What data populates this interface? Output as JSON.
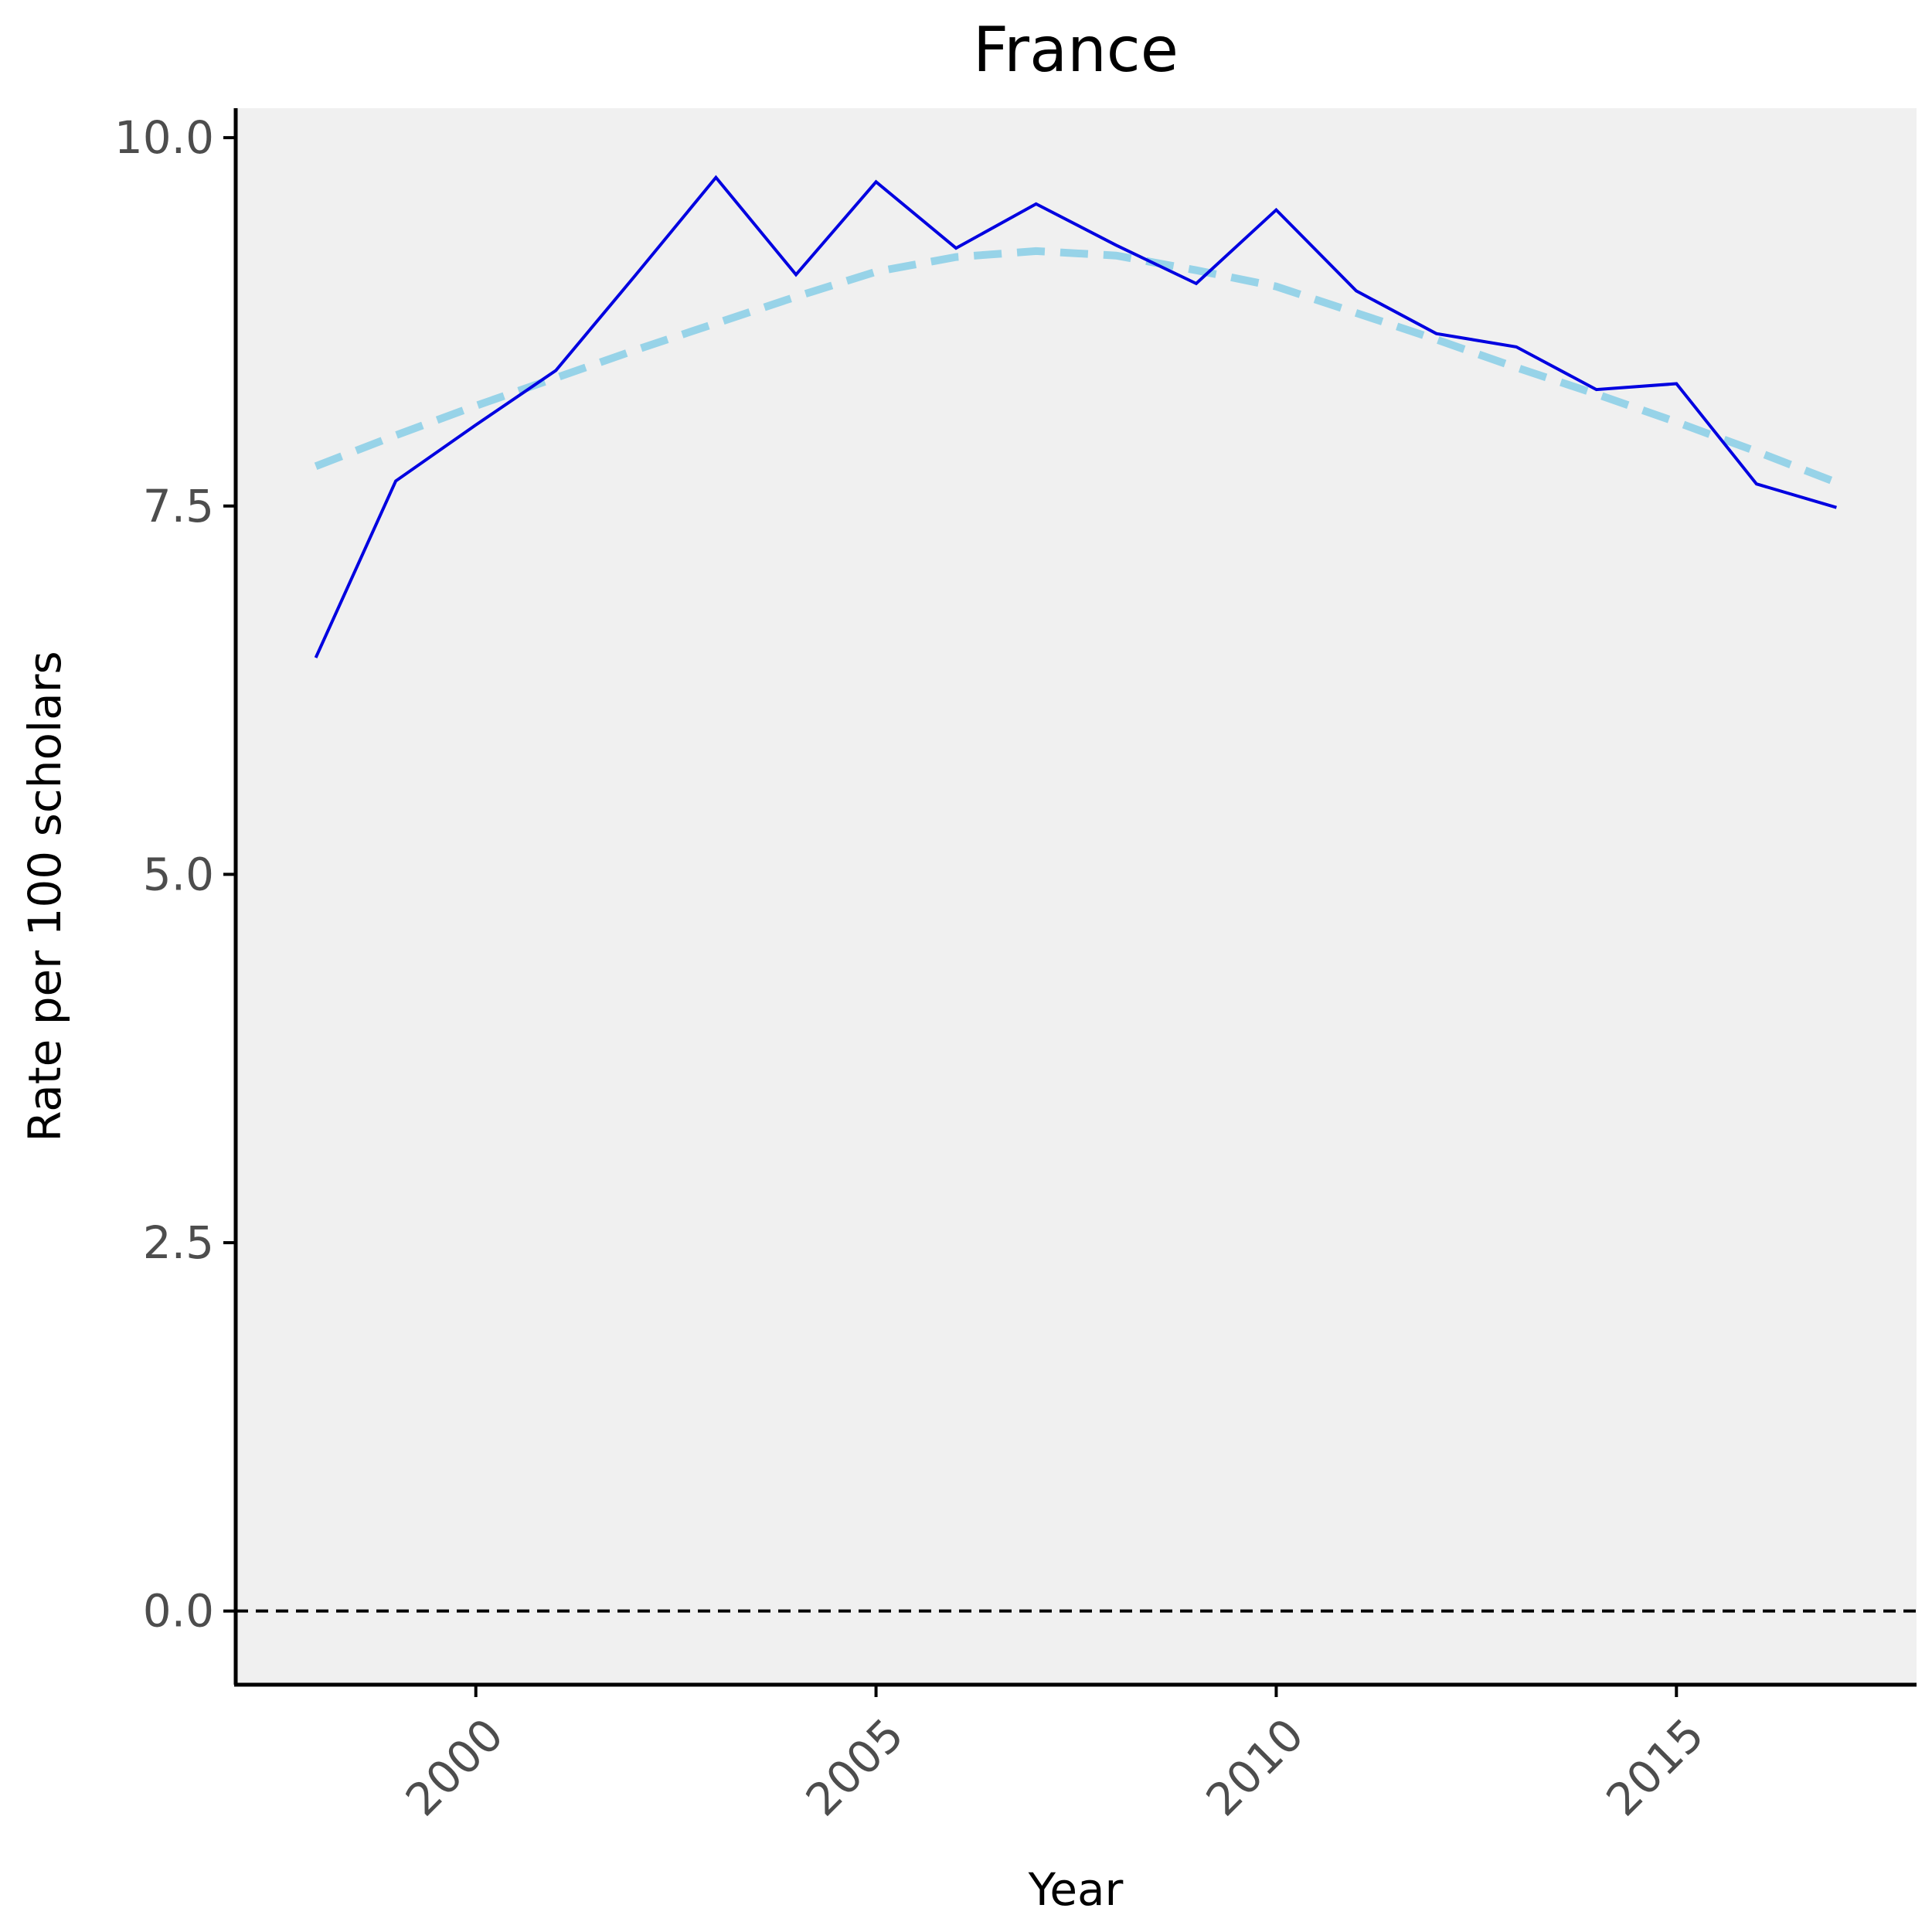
{
  "chart_data": {
    "type": "line",
    "title": "France",
    "xlabel": "Year",
    "ylabel": "Rate per 100 scholars",
    "xlim": [
      1997,
      2018
    ],
    "ylim": [
      -0.5,
      10.2
    ],
    "x_ticks": [
      2000,
      2005,
      2010,
      2015
    ],
    "y_ticks": [
      0.0,
      2.5,
      5.0,
      7.5,
      10.0
    ],
    "y_tick_labels": [
      "0.0",
      "2.5",
      "5.0",
      "7.5",
      "10.0"
    ],
    "x_tick_labels": [
      "2000",
      "2005",
      "2010",
      "2015"
    ],
    "grid": false,
    "reference_line": {
      "y": 0.0,
      "style": "dashed",
      "color": "#000000"
    },
    "series": [
      {
        "role": "observed",
        "color": "#0000e0",
        "style": "solid",
        "x": [
          1998,
          1999,
          2000,
          2001,
          2002,
          2003,
          2004,
          2005,
          2006,
          2007,
          2008,
          2009,
          2010,
          2011,
          2012,
          2013,
          2014,
          2015,
          2016,
          2017
        ],
        "values": [
          6.47,
          7.67,
          8.05,
          8.42,
          9.07,
          9.73,
          9.07,
          9.7,
          9.25,
          9.55,
          9.27,
          9.01,
          9.51,
          8.96,
          8.67,
          8.58,
          8.29,
          8.33,
          7.65,
          7.49
        ]
      },
      {
        "role": "trend",
        "color": "#97d3e8",
        "style": "dashed",
        "x": [
          1998,
          1999,
          2000,
          2001,
          2002,
          2003,
          2004,
          2005,
          2006,
          2007,
          2008,
          2009,
          2010,
          2011,
          2012,
          2013,
          2014,
          2015,
          2016,
          2017
        ],
        "values": [
          7.77,
          7.98,
          8.18,
          8.37,
          8.56,
          8.74,
          8.92,
          9.09,
          9.19,
          9.23,
          9.2,
          9.1,
          8.99,
          8.81,
          8.63,
          8.44,
          8.26,
          8.07,
          7.87,
          7.66
        ]
      }
    ]
  }
}
